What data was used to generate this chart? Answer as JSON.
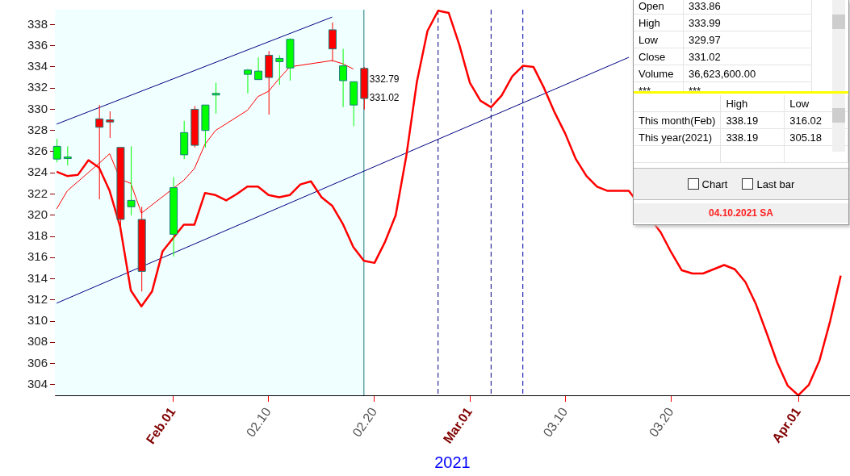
{
  "chart_data": [
    {
      "type": "candlestick",
      "xlabel": "2021",
      "xlim": [
        "2021-01-20T20:00",
        "2021-04-05T21:00"
      ],
      "xticks": [
        {
          "value": "2021-02-01",
          "label": "Feb.01"
        },
        {
          "value": "2021-02-10",
          "label": "02.10"
        },
        {
          "value": "2021-02-20",
          "label": "02.20"
        },
        {
          "value": "2021-03-01",
          "label": "Mar.01"
        },
        {
          "value": "2021-03-10",
          "label": "03.10"
        },
        {
          "value": "2021-03-20",
          "label": "03.20"
        },
        {
          "value": "2021-04-01",
          "label": "Apr.01"
        }
      ],
      "ylim": [
        303,
        339.4
      ],
      "yticks": [
        304,
        306,
        308,
        310,
        312,
        314,
        316,
        318,
        320,
        322,
        324,
        326,
        328,
        330,
        332,
        334,
        336,
        338
      ],
      "grid": false,
      "legend": false,
      "series": [
        {
          "type": "candlestick",
          "x": [
            "2021-01-21",
            "2021-01-22",
            "2021-01-25",
            "2021-01-26",
            "2021-01-27",
            "2021-01-28",
            "2021-01-29",
            "2021-02-01",
            "2021-02-02",
            "2021-02-03",
            "2021-02-04",
            "2021-02-05",
            "2021-02-08",
            "2021-02-09",
            "2021-02-10",
            "2021-02-11",
            "2021-02-12",
            "2021-02-16",
            "2021-02-17",
            "2021-02-18",
            "2021-02-19"
          ],
          "ohlc": [
            [
              325.3,
              327.2,
              325.0,
              326.5
            ],
            [
              325.4,
              326.5,
              324.7,
              325.5
            ],
            [
              329.1,
              330.4,
              321.5,
              328.3
            ],
            [
              329.0,
              329.8,
              327.3,
              328.8
            ],
            [
              326.4,
              326.4,
              318.5,
              319.6
            ],
            [
              320.8,
              326.5,
              320.0,
              321.4
            ],
            [
              319.6,
              320.8,
              312.8,
              314.7
            ],
            [
              318.2,
              323.6,
              316.1,
              322.6
            ],
            [
              325.7,
              328.9,
              325.3,
              327.8
            ],
            [
              330.0,
              330.3,
              326.4,
              326.6
            ],
            [
              328.0,
              330.4,
              326.4,
              330.4
            ],
            [
              331.4,
              332.5,
              329.6,
              331.5
            ],
            [
              333.3,
              333.8,
              331.5,
              333.7
            ],
            [
              332.8,
              334.9,
              332.8,
              333.6
            ],
            [
              335.1,
              335.5,
              329.5,
              333.0
            ],
            [
              334.5,
              335.1,
              332.3,
              334.8
            ],
            [
              333.9,
              336.7,
              332.7,
              336.6
            ],
            [
              337.5,
              338.19,
              334.5,
              335.7
            ],
            [
              332.7,
              335.7,
              330.2,
              334.1
            ],
            [
              330.4,
              332.6,
              328.4,
              332.6
            ],
            [
              333.86,
              333.99,
              329.97,
              331.02
            ]
          ],
          "colors": [
            "#00ff00",
            "#00ff00",
            "#ff0000",
            "#ff0000",
            "#ff0000",
            "#00ff00",
            "#ff0000",
            "#00ff00",
            "#00ff00",
            "#ff0000",
            "#00ff00",
            "#00ff00",
            "#00ff00",
            "#00ff00",
            "#ff0000",
            "#00ff00",
            "#00ff00",
            "#ff0000",
            "#00ff00",
            "#00ff00",
            "#ff0000"
          ]
        },
        {
          "type": "line",
          "color": "#ff0000",
          "x": [
            "2021-01-21",
            "2021-01-22",
            "2021-01-25",
            "2021-01-26",
            "2021-01-27",
            "2021-01-28",
            "2021-01-29",
            "2021-02-01",
            "2021-02-02",
            "2021-02-03",
            "2021-02-04",
            "2021-02-05",
            "2021-02-08",
            "2021-02-09",
            "2021-02-10",
            "2021-02-11",
            "2021-02-12",
            "2021-02-16",
            "2021-02-17",
            "2021-02-18"
          ],
          "values": [
            320.6,
            322.3,
            324.9,
            325.8,
            323.4,
            323.0,
            320.2,
            null,
            323.3,
            324.4,
            326.7,
            328.0,
            329.9,
            331.2,
            331.7,
            332.9,
            334.0,
            334.6,
            334.3,
            333.8
          ]
        },
        {
          "type": "line",
          "color": "#ff0000",
          "x": [
            "2021-01-21",
            "2021-01-22",
            "2021-01-23",
            "2021-01-24",
            "2021-01-25",
            "2021-01-26",
            "2021-01-27",
            "2021-01-28",
            "2021-01-29",
            "2021-01-30",
            "2021-01-31",
            "2021-02-01",
            "2021-02-02",
            "2021-02-03",
            "2021-02-04",
            "2021-02-05",
            "2021-02-06",
            "2021-02-07",
            "2021-02-08",
            "2021-02-09",
            "2021-02-10",
            "2021-02-11",
            "2021-02-12",
            "2021-02-13",
            "2021-02-14",
            "2021-02-15",
            "2021-02-16",
            "2021-02-17",
            "2021-02-18",
            "2021-02-19",
            "2021-02-20",
            "2021-02-21",
            "2021-02-22",
            "2021-02-23",
            "2021-02-24",
            "2021-02-25",
            "2021-02-26",
            "2021-02-27",
            "2021-02-28",
            "2021-03-01",
            "2021-03-02",
            "2021-03-03",
            "2021-03-04",
            "2021-03-05",
            "2021-03-06",
            "2021-03-07",
            "2021-03-08",
            "2021-03-09",
            "2021-03-10",
            "2021-03-11",
            "2021-03-12",
            "2021-03-13",
            "2021-03-14",
            "2021-03-15",
            "2021-03-16",
            "2021-03-17",
            "2021-03-18",
            "2021-03-19",
            "2021-03-20",
            "2021-03-21",
            "2021-03-22",
            "2021-03-23",
            "2021-03-24",
            "2021-03-25",
            "2021-03-26",
            "2021-03-27",
            "2021-03-28",
            "2021-03-29",
            "2021-03-30",
            "2021-03-31",
            "2021-04-01",
            "2021-04-02",
            "2021-04-03",
            "2021-04-04",
            "2021-04-05"
          ],
          "values": [
            324.1,
            323.7,
            323.8,
            325.2,
            324.5,
            322.3,
            318.9,
            312.9,
            311.4,
            312.8,
            316.6,
            null,
            319.1,
            319.1,
            322.1,
            321.9,
            321.4,
            322.0,
            322.7,
            322.7,
            321.9,
            321.7,
            321.9,
            322.9,
            323.2,
            321.7,
            320.9,
            319.2,
            317.0,
            315.7,
            315.5,
            317.5,
            320.0,
            325.6,
            332.6,
            337.4,
            339.3,
            339.1,
            336.1,
            332.5,
            330.8,
            330.2,
            331.3,
            333.1,
            334.1,
            334.0,
            332.0,
            329.7,
            327.7,
            325.3,
            323.7,
            322.7,
            322.3,
            322.3,
            322.3,
            null,
            null,
            318.4,
            316.5,
            314.8,
            314.5,
            314.5,
            314.9,
            315.3,
            314.9,
            313.7,
            311.6,
            308.9,
            306.1,
            303.9,
            303.0,
            304.0,
            306.3,
            310.0,
            314.3
          ]
        },
        {
          "type": "line",
          "color": "#000080",
          "x": [
            "2021-01-21",
            "2021-02-16"
          ],
          "values": [
            328.6,
            338.7
          ]
        },
        {
          "type": "line",
          "color": "#000080",
          "x": [
            "2021-01-21",
            "2021-03-16"
          ],
          "values": [
            311.7,
            334.9
          ]
        }
      ],
      "ref_lines": [
        {
          "axis": "x",
          "value": "2021-02-19",
          "color": "#1a7a7a",
          "line_style": "solid"
        },
        {
          "axis": "x",
          "value": "2021-02-26",
          "color": "#000080",
          "line_style": "dashed"
        },
        {
          "axis": "x",
          "value": "2021-03-03",
          "color": "#000080",
          "line_style": "dashed"
        },
        {
          "axis": "x",
          "value": "2021-03-06",
          "color": "#0000aa",
          "line_style": "dashed"
        }
      ],
      "bands": [
        {
          "axis": "x",
          "from": "2021-01-20T20:00",
          "to": "2021-02-19",
          "color": "#f0ffff"
        }
      ],
      "annotations": [
        {
          "text": "332.79",
          "x": "2021-02-19",
          "y": 332.79
        },
        {
          "text": "331.02",
          "x": "2021-02-19",
          "y": 331.02
        }
      ]
    },
    {
      "type": "other",
      "categories": [
        "Open",
        "High",
        "Low",
        "Close",
        "Volume",
        "***"
      ],
      "value_labels": [
        "333.86",
        "333.99",
        "329.97",
        "331.02",
        "36,623,600.00",
        "***"
      ]
    },
    {
      "type": "other",
      "categories": [
        "This month(Feb)",
        "This year(2021)"
      ],
      "series": [
        {
          "name": "High",
          "values": [
            338.19,
            338.19
          ]
        },
        {
          "name": "Low",
          "values": [
            316.02,
            305.18
          ]
        }
      ],
      "data_labels": true,
      "annotations": [
        "Chart",
        "Last bar",
        "04.10.2021 SA"
      ]
    }
  ]
}
